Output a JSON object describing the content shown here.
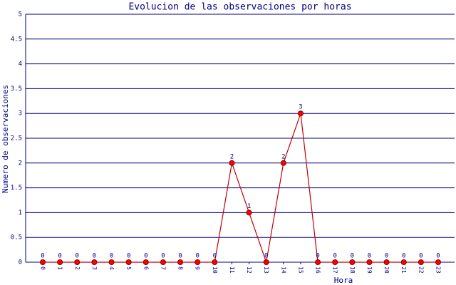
{
  "chart_data": {
    "type": "line",
    "title": "Evolucion de las observaciones por horas",
    "x_label": "Hora",
    "y_label": "Numero de observaciones",
    "categories": [
      "0",
      "1",
      "2",
      "3",
      "4",
      "5",
      "6",
      "7",
      "8",
      "9",
      "10",
      "11",
      "12",
      "13",
      "14",
      "15",
      "16",
      "17",
      "18",
      "19",
      "20",
      "21",
      "22",
      "23"
    ],
    "values": [
      0,
      0,
      0,
      0,
      0,
      0,
      0,
      0,
      0,
      0,
      0,
      2,
      1,
      0,
      2,
      3,
      0,
      0,
      0,
      0,
      0,
      0,
      0,
      0
    ],
    "color": "#c00000",
    "marker_color": "#ff0000",
    "ylim": [
      0,
      5
    ],
    "yticks": [
      0,
      0.5,
      1,
      1.5,
      2,
      2.5,
      3,
      3.5,
      4,
      4.5,
      5
    ],
    "grid": true
  }
}
